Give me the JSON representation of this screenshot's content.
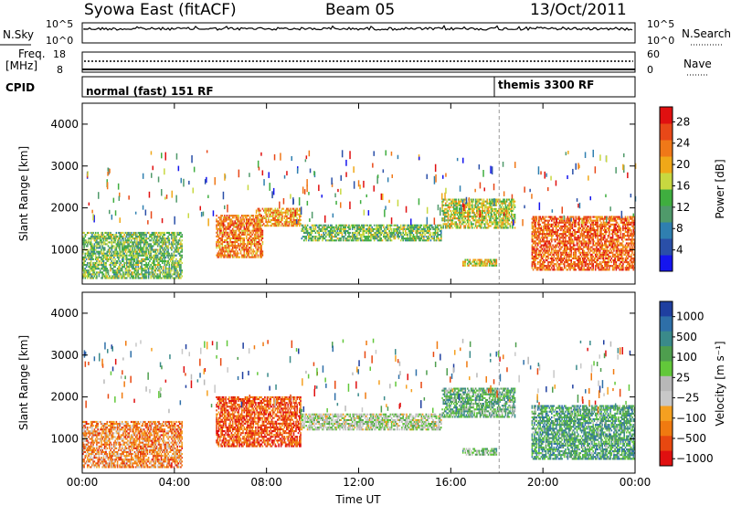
{
  "header": {
    "station": "Syowa East (fitACF)",
    "beam": "Beam 05",
    "date": "13/Oct/2011"
  },
  "strip_labels": {
    "nsky": "N.Sky",
    "nsky_ticks": [
      "10^5",
      "10^0"
    ],
    "nsearch": "N.Search",
    "nsearch_ticks": [
      "10^5",
      "10^0"
    ],
    "freq_label": "Freq.",
    "freq_unit": "[MHz]",
    "freq_ticks": [
      "18",
      "8"
    ],
    "nave": "Nave",
    "nave_ticks": [
      "60",
      "0"
    ],
    "cpid": "CPID",
    "cpid_mode1": "normal (fast) 151 RF",
    "cpid_mode2": "themis 3300 RF"
  },
  "colors": {
    "power_scale": [
      "#1515ee",
      "#2a4fa8",
      "#2f7fb0",
      "#4f9a6a",
      "#3fae3f",
      "#c8d840",
      "#f0a818",
      "#f07818",
      "#e84818",
      "#e01010"
    ],
    "velocity_scale": [
      "#1f3fa0",
      "#2e6fa8",
      "#3a8a8a",
      "#4e9e4e",
      "#62c83a",
      "#b8b8b8",
      "#c8c8c8",
      "#f5a020",
      "#f07a10",
      "#e84810",
      "#e01010"
    ]
  },
  "chart_data": [
    {
      "type": "heatmap",
      "panel": "power",
      "xlabel": "",
      "ylabel": "Slant Range [km]",
      "x_ticks": [
        "00:00",
        "04:00",
        "08:00",
        "12:00",
        "16:00",
        "20:00",
        "00:00"
      ],
      "y_ticks": [
        1000,
        2000,
        3000,
        4000
      ],
      "ylim": [
        180,
        4500
      ],
      "xlim_hours": [
        0,
        24
      ],
      "colorbar_label": "Power [dB]",
      "colorbar_ticks": [
        "4",
        "8",
        "12",
        "16",
        "20",
        "24",
        "28"
      ],
      "colorbar_range": [
        0,
        30
      ],
      "mode_change_hour": 18.1,
      "regions": [
        {
          "t0": 0.0,
          "t1": 4.3,
          "r0": 300,
          "r1": 1400,
          "level": 0.45
        },
        {
          "t0": 5.8,
          "t1": 7.8,
          "r0": 800,
          "r1": 1800,
          "level": 0.75
        },
        {
          "t0": 7.6,
          "t1": 9.5,
          "r0": 1550,
          "r1": 2000,
          "level": 0.7
        },
        {
          "t0": 9.5,
          "t1": 15.6,
          "r0": 1200,
          "r1": 1600,
          "level": 0.45
        },
        {
          "t0": 15.6,
          "t1": 18.8,
          "r0": 1500,
          "r1": 2200,
          "level": 0.55
        },
        {
          "t0": 16.5,
          "t1": 18.0,
          "r0": 600,
          "r1": 780,
          "level": 0.6
        },
        {
          "t0": 19.5,
          "t1": 24.0,
          "r0": 500,
          "r1": 1800,
          "level": 0.8
        }
      ]
    },
    {
      "type": "heatmap",
      "panel": "velocity",
      "xlabel": "Time UT",
      "ylabel": "Slant Range [km]",
      "x_ticks": [
        "00:00",
        "04:00",
        "08:00",
        "12:00",
        "16:00",
        "20:00",
        "00:00"
      ],
      "y_ticks": [
        1000,
        2000,
        3000,
        4000
      ],
      "ylim": [
        180,
        4500
      ],
      "xlim_hours": [
        0,
        24
      ],
      "colorbar_label": "Velocity [m s⁻¹]",
      "colorbar_ticks": [
        "1000",
        "500",
        "100",
        "25",
        "−25",
        "−100",
        "−500",
        "−1000"
      ],
      "colorbar_range": [
        -1000,
        1000
      ],
      "mode_change_hour": 18.1,
      "regions": [
        {
          "t0": 0.0,
          "t1": 4.3,
          "r0": 300,
          "r1": 1400,
          "level": 0.75
        },
        {
          "t0": 5.8,
          "t1": 9.5,
          "r0": 800,
          "r1": 2000,
          "level": 0.85
        },
        {
          "t0": 9.5,
          "t1": 15.6,
          "r0": 1200,
          "r1": 1600,
          "level": 0.5
        },
        {
          "t0": 15.6,
          "t1": 18.8,
          "r0": 1500,
          "r1": 2200,
          "level": 0.35
        },
        {
          "t0": 16.5,
          "t1": 18.0,
          "r0": 600,
          "r1": 780,
          "level": 0.4
        },
        {
          "t0": 19.5,
          "t1": 24.0,
          "r0": 500,
          "r1": 1800,
          "level": 0.3
        }
      ]
    }
  ]
}
